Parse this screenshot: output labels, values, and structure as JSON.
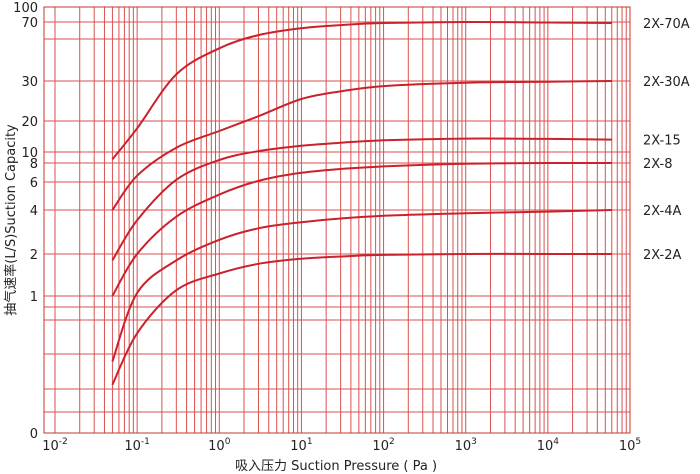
{
  "chart_data": {
    "type": "line",
    "title": "",
    "xlabel": "吸入压力 Suction Pressure ( Pa )",
    "ylabel": "抽气速率(L/S)Suction Capacity",
    "x_scale": "log",
    "xlim": [
      0.01,
      100000
    ],
    "x_ticks": [
      {
        "value": 0.01,
        "base": "10",
        "exp": "-2"
      },
      {
        "value": 0.1,
        "base": "10",
        "exp": "-1"
      },
      {
        "value": 1,
        "base": "10",
        "exp": "0"
      },
      {
        "value": 10,
        "base": "10",
        "exp": "1"
      },
      {
        "value": 100,
        "base": "10",
        "exp": "2"
      },
      {
        "value": 1000,
        "base": "10",
        "exp": "3"
      },
      {
        "value": 10000,
        "base": "10",
        "exp": "4"
      },
      {
        "value": 100000,
        "base": "10",
        "exp": "5"
      }
    ],
    "y_scale": "log",
    "y_ticks": [
      "100",
      "70",
      "30",
      "20",
      "10",
      "8",
      "6",
      "4",
      "2",
      "1",
      "0"
    ],
    "grid": true,
    "series": [
      {
        "name": "2X-70A",
        "x": [
          0.05,
          0.1,
          0.3,
          1,
          3,
          10,
          30,
          100,
          1000,
          10000,
          60000
        ],
        "y": [
          8.6,
          17,
          33,
          48,
          58,
          64,
          67,
          69,
          70,
          69.5,
          69
        ]
      },
      {
        "name": "2X-30A",
        "x": [
          0.05,
          0.1,
          0.3,
          1,
          3,
          10,
          30,
          100,
          1000,
          10000,
          60000
        ],
        "y": [
          4,
          6.6,
          11,
          16,
          21,
          25,
          27,
          28.5,
          29.5,
          29.8,
          30
        ]
      },
      {
        "name": "2X-15",
        "x": [
          0.05,
          0.1,
          0.3,
          1,
          3,
          10,
          30,
          100,
          1000,
          10000,
          60000
        ],
        "y": [
          1.8,
          3.4,
          6.2,
          8.5,
          10.2,
          11.5,
          12.3,
          13,
          13.5,
          13.4,
          13.2
        ]
      },
      {
        "name": "2X-8",
        "x": [
          0.05,
          0.1,
          0.3,
          1,
          3,
          10,
          30,
          100,
          1000,
          10000,
          60000
        ],
        "y": [
          1,
          2,
          3.6,
          5,
          6.1,
          6.9,
          7.3,
          7.6,
          7.9,
          8,
          8
        ]
      },
      {
        "name": "2X-4A",
        "x": [
          0.05,
          0.1,
          0.3,
          1,
          3,
          10,
          30,
          100,
          1000,
          10000,
          60000
        ],
        "y": [
          0.55,
          1.05,
          1.8,
          2.5,
          3,
          3.3,
          3.5,
          3.65,
          3.8,
          3.9,
          4
        ]
      },
      {
        "name": "2X-2A",
        "x": [
          0.05,
          0.1,
          0.3,
          1,
          3,
          10,
          30,
          100,
          1000,
          10000,
          60000
        ],
        "y": [
          0.42,
          0.72,
          1.1,
          1.45,
          1.7,
          1.85,
          1.92,
          1.97,
          2,
          2,
          2
        ]
      }
    ]
  }
}
